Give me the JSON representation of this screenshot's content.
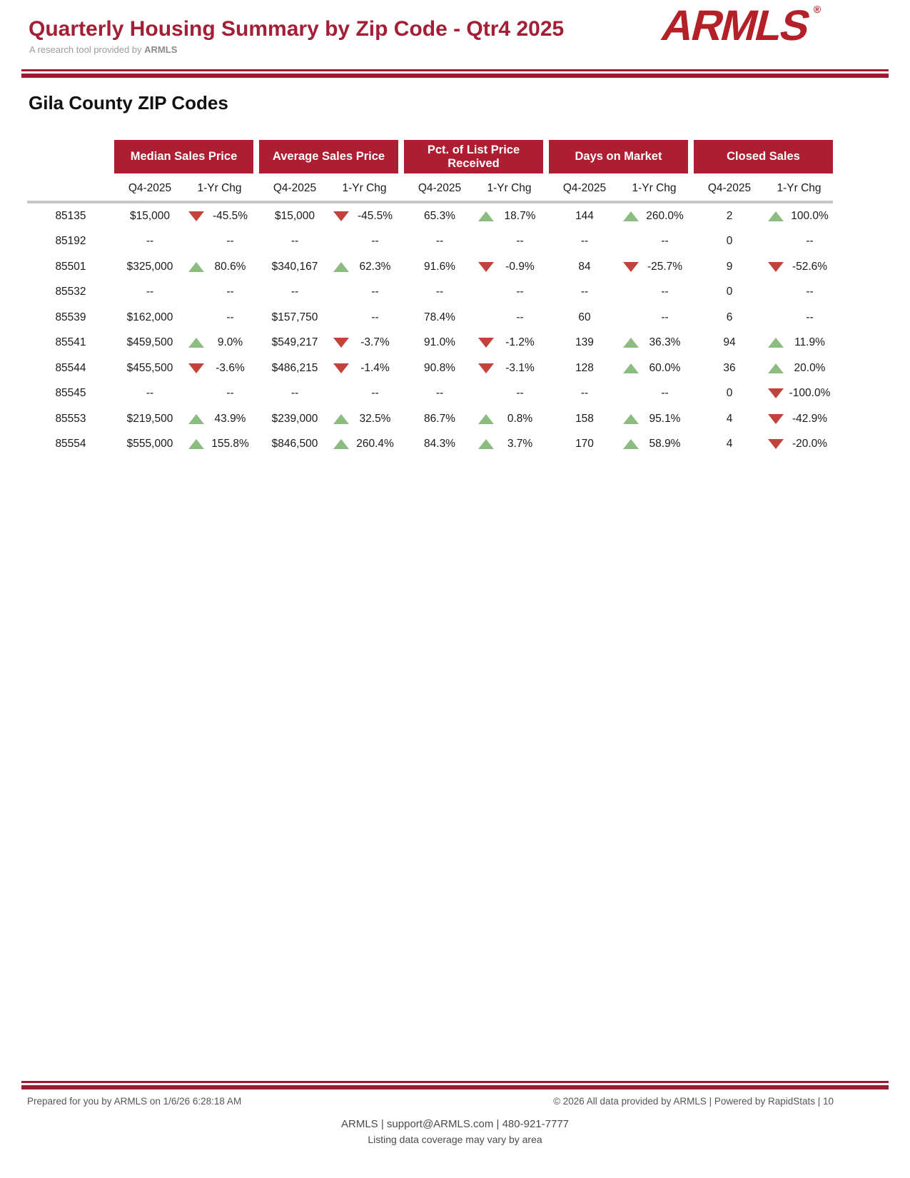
{
  "header": {
    "title": "Quarterly Housing Summary by Zip Code - Qtr4 2025",
    "subtitle_prefix": "A research tool provided by ",
    "subtitle_brand": "ARMLS",
    "logo_text": "ARMLS",
    "logo_reg": "®"
  },
  "section_title": "Gila County ZIP Codes",
  "table": {
    "group_headers": [
      "Median Sales Price",
      "Average Sales Price",
      "Pct. of List Price Received",
      "Days on Market",
      "Closed Sales"
    ],
    "sub_headers": {
      "period": "Q4-2025",
      "change": "1-Yr Chg"
    },
    "rows": [
      {
        "zip": "85135",
        "cells": [
          {
            "v": "$15,000",
            "t": "down",
            "c": "-45.5%"
          },
          {
            "v": "$15,000",
            "t": "down",
            "c": "-45.5%"
          },
          {
            "v": "65.3%",
            "t": "up",
            "c": "18.7%"
          },
          {
            "v": "144",
            "t": "up",
            "c": "260.0%"
          },
          {
            "v": "2",
            "t": "up",
            "c": "100.0%"
          }
        ]
      },
      {
        "zip": "85192",
        "cells": [
          {
            "v": "--",
            "t": "",
            "c": "--"
          },
          {
            "v": "--",
            "t": "",
            "c": "--"
          },
          {
            "v": "--",
            "t": "",
            "c": "--"
          },
          {
            "v": "--",
            "t": "",
            "c": "--"
          },
          {
            "v": "0",
            "t": "",
            "c": "--"
          }
        ]
      },
      {
        "zip": "85501",
        "cells": [
          {
            "v": "$325,000",
            "t": "up",
            "c": "80.6%"
          },
          {
            "v": "$340,167",
            "t": "up",
            "c": "62.3%"
          },
          {
            "v": "91.6%",
            "t": "down",
            "c": "-0.9%"
          },
          {
            "v": "84",
            "t": "down",
            "c": "-25.7%"
          },
          {
            "v": "9",
            "t": "down",
            "c": "-52.6%"
          }
        ]
      },
      {
        "zip": "85532",
        "cells": [
          {
            "v": "--",
            "t": "",
            "c": "--"
          },
          {
            "v": "--",
            "t": "",
            "c": "--"
          },
          {
            "v": "--",
            "t": "",
            "c": "--"
          },
          {
            "v": "--",
            "t": "",
            "c": "--"
          },
          {
            "v": "0",
            "t": "",
            "c": "--"
          }
        ]
      },
      {
        "zip": "85539",
        "cells": [
          {
            "v": "$162,000",
            "t": "",
            "c": "--"
          },
          {
            "v": "$157,750",
            "t": "",
            "c": "--"
          },
          {
            "v": "78.4%",
            "t": "",
            "c": "--"
          },
          {
            "v": "60",
            "t": "",
            "c": "--"
          },
          {
            "v": "6",
            "t": "",
            "c": "--"
          }
        ]
      },
      {
        "zip": "85541",
        "cells": [
          {
            "v": "$459,500",
            "t": "up",
            "c": "9.0%"
          },
          {
            "v": "$549,217",
            "t": "down",
            "c": "-3.7%"
          },
          {
            "v": "91.0%",
            "t": "down",
            "c": "-1.2%"
          },
          {
            "v": "139",
            "t": "up",
            "c": "36.3%"
          },
          {
            "v": "94",
            "t": "up",
            "c": "11.9%"
          }
        ]
      },
      {
        "zip": "85544",
        "cells": [
          {
            "v": "$455,500",
            "t": "down",
            "c": "-3.6%"
          },
          {
            "v": "$486,215",
            "t": "down",
            "c": "-1.4%"
          },
          {
            "v": "90.8%",
            "t": "down",
            "c": "-3.1%"
          },
          {
            "v": "128",
            "t": "up",
            "c": "60.0%"
          },
          {
            "v": "36",
            "t": "up",
            "c": "20.0%"
          }
        ]
      },
      {
        "zip": "85545",
        "cells": [
          {
            "v": "--",
            "t": "",
            "c": "--"
          },
          {
            "v": "--",
            "t": "",
            "c": "--"
          },
          {
            "v": "--",
            "t": "",
            "c": "--"
          },
          {
            "v": "--",
            "t": "",
            "c": "--"
          },
          {
            "v": "0",
            "t": "down",
            "c": "-100.0%"
          }
        ]
      },
      {
        "zip": "85553",
        "cells": [
          {
            "v": "$219,500",
            "t": "up",
            "c": "43.9%"
          },
          {
            "v": "$239,000",
            "t": "up",
            "c": "32.5%"
          },
          {
            "v": "86.7%",
            "t": "up",
            "c": "0.8%"
          },
          {
            "v": "158",
            "t": "up",
            "c": "95.1%"
          },
          {
            "v": "4",
            "t": "down",
            "c": "-42.9%"
          }
        ]
      },
      {
        "zip": "85554",
        "cells": [
          {
            "v": "$555,000",
            "t": "up",
            "c": "155.8%"
          },
          {
            "v": "$846,500",
            "t": "up",
            "c": "260.4%"
          },
          {
            "v": "84.3%",
            "t": "up",
            "c": "3.7%"
          },
          {
            "v": "170",
            "t": "up",
            "c": "58.9%"
          },
          {
            "v": "4",
            "t": "down",
            "c": "-20.0%"
          }
        ]
      }
    ]
  },
  "footer": {
    "left": "Prepared for you by ARMLS on 1/6/26 6:28:18 AM",
    "right": "© 2026 All data provided by ARMLS | Powered by RapidStats  | 10",
    "center_line1": "ARMLS | support@ARMLS.com | 480-921-7777",
    "center_line2": "Listing data coverage may vary by area"
  },
  "colors": {
    "brand_red": "#AE1E32",
    "title_red": "#A31F35",
    "rule_red": "#9D1B31",
    "logo_red": "#B32027",
    "up_green": "#8CBD80",
    "down_red": "#C2423C",
    "gray_rule": "#C7C7C7"
  }
}
